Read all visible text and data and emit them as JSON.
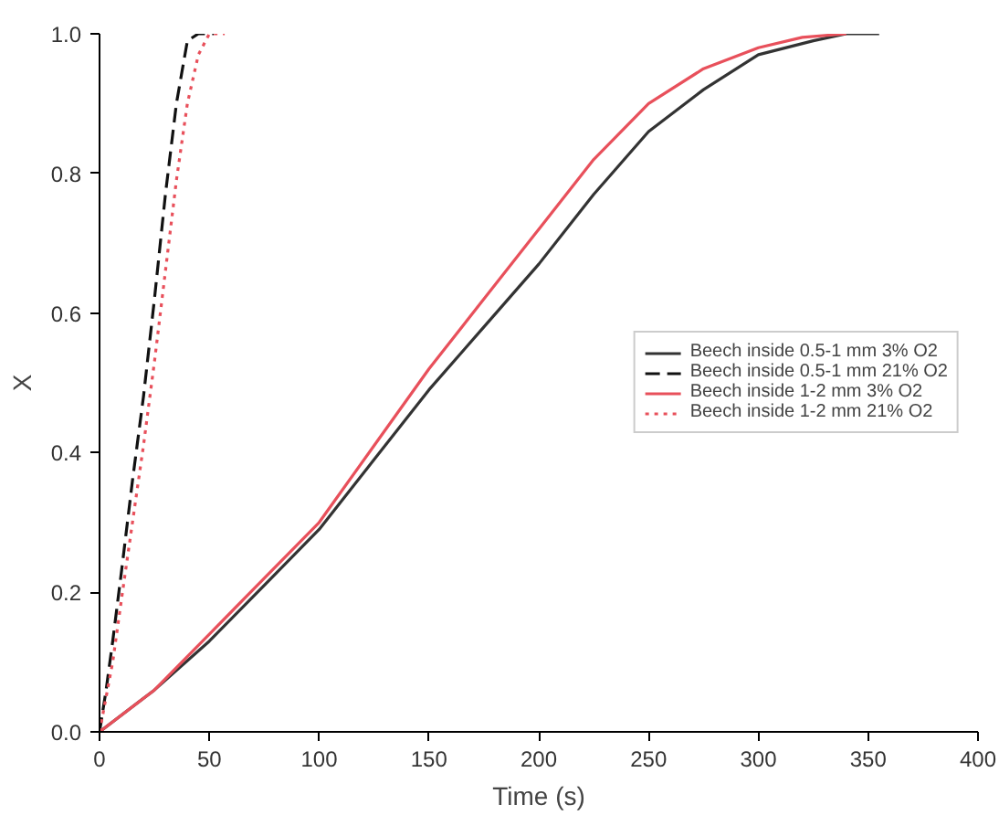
{
  "chart_data": {
    "type": "line",
    "xlabel": "Time (s)",
    "ylabel": "X",
    "xlim": [
      0,
      400
    ],
    "ylim": [
      0,
      1.0
    ],
    "xticks": [
      0,
      50,
      100,
      150,
      200,
      250,
      300,
      350,
      400
    ],
    "yticks": [
      {
        "value": 0,
        "label": "0.0"
      },
      0.2,
      0.4,
      0.6,
      0.8,
      {
        "value": 1,
        "label": "1.0"
      }
    ],
    "legend": "right",
    "grid": false,
    "series": [
      {
        "name": "Beech inside 0.5-1 mm 3% O2",
        "color": "#333333",
        "line_style": "solid",
        "x": [
          0,
          25,
          50,
          75,
          100,
          125,
          150,
          175,
          200,
          225,
          250,
          275,
          300,
          325,
          340,
          355
        ],
        "values": [
          0,
          0.06,
          0.13,
          0.21,
          0.29,
          0.39,
          0.49,
          0.58,
          0.67,
          0.77,
          0.86,
          0.92,
          0.97,
          0.99,
          1.0,
          1.0
        ]
      },
      {
        "name": "Beech inside 0.5-1 mm 21% O2",
        "color": "#111111",
        "line_style": "dashed",
        "x": [
          0,
          3,
          6,
          10,
          15,
          20,
          25,
          30,
          35,
          40,
          45,
          52
        ],
        "values": [
          0,
          0.06,
          0.13,
          0.23,
          0.36,
          0.48,
          0.62,
          0.77,
          0.9,
          0.99,
          1.0,
          1.0
        ]
      },
      {
        "name": "Beech inside 1-2 mm 3% O2",
        "color": "#e8505b",
        "line_style": "solid",
        "x": [
          0,
          25,
          50,
          75,
          100,
          125,
          150,
          175,
          200,
          225,
          250,
          275,
          300,
          320,
          340
        ],
        "values": [
          0,
          0.06,
          0.14,
          0.22,
          0.3,
          0.41,
          0.52,
          0.62,
          0.72,
          0.82,
          0.9,
          0.95,
          0.98,
          0.995,
          1.0
        ]
      },
      {
        "name": "Beech inside 1-2 mm 21% O2",
        "color": "#e8505b",
        "line_style": "dotted",
        "x": [
          0,
          3,
          6,
          10,
          15,
          20,
          25,
          30,
          35,
          40,
          45,
          50,
          57
        ],
        "values": [
          0,
          0.05,
          0.1,
          0.19,
          0.3,
          0.41,
          0.53,
          0.66,
          0.79,
          0.9,
          0.97,
          1.0,
          1.0
        ]
      }
    ]
  }
}
